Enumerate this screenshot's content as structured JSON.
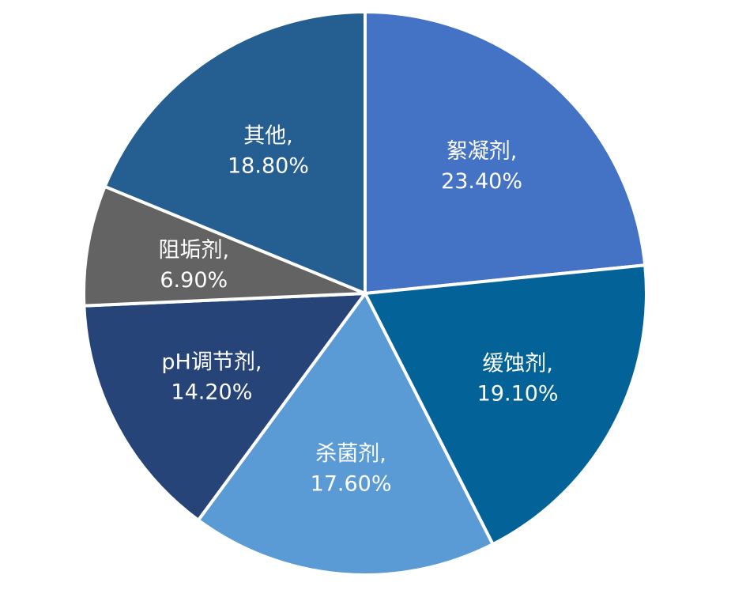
{
  "chart_data": {
    "type": "pie",
    "start": "12 o'clock",
    "direction": "clockwise",
    "slices": [
      {
        "name": "絮凝剂",
        "value": 23.4,
        "value_label": "23.40%",
        "color": "#4472C4"
      },
      {
        "name": "缓蚀剂",
        "value": 19.1,
        "value_label": "19.10%",
        "color": "#036398"
      },
      {
        "name": "杀菌剂",
        "value": 17.6,
        "value_label": "17.60%",
        "color": "#5B9BD5"
      },
      {
        "name": "pH调节剂",
        "value": 14.2,
        "value_label": "14.20%",
        "color": "#264478"
      },
      {
        "name": "阻垢剂",
        "value": 6.9,
        "value_label": "6.90%",
        "color": "#636363"
      },
      {
        "name": "其他",
        "value": 18.8,
        "value_label": "18.80%",
        "color": "#255E91"
      }
    ]
  }
}
